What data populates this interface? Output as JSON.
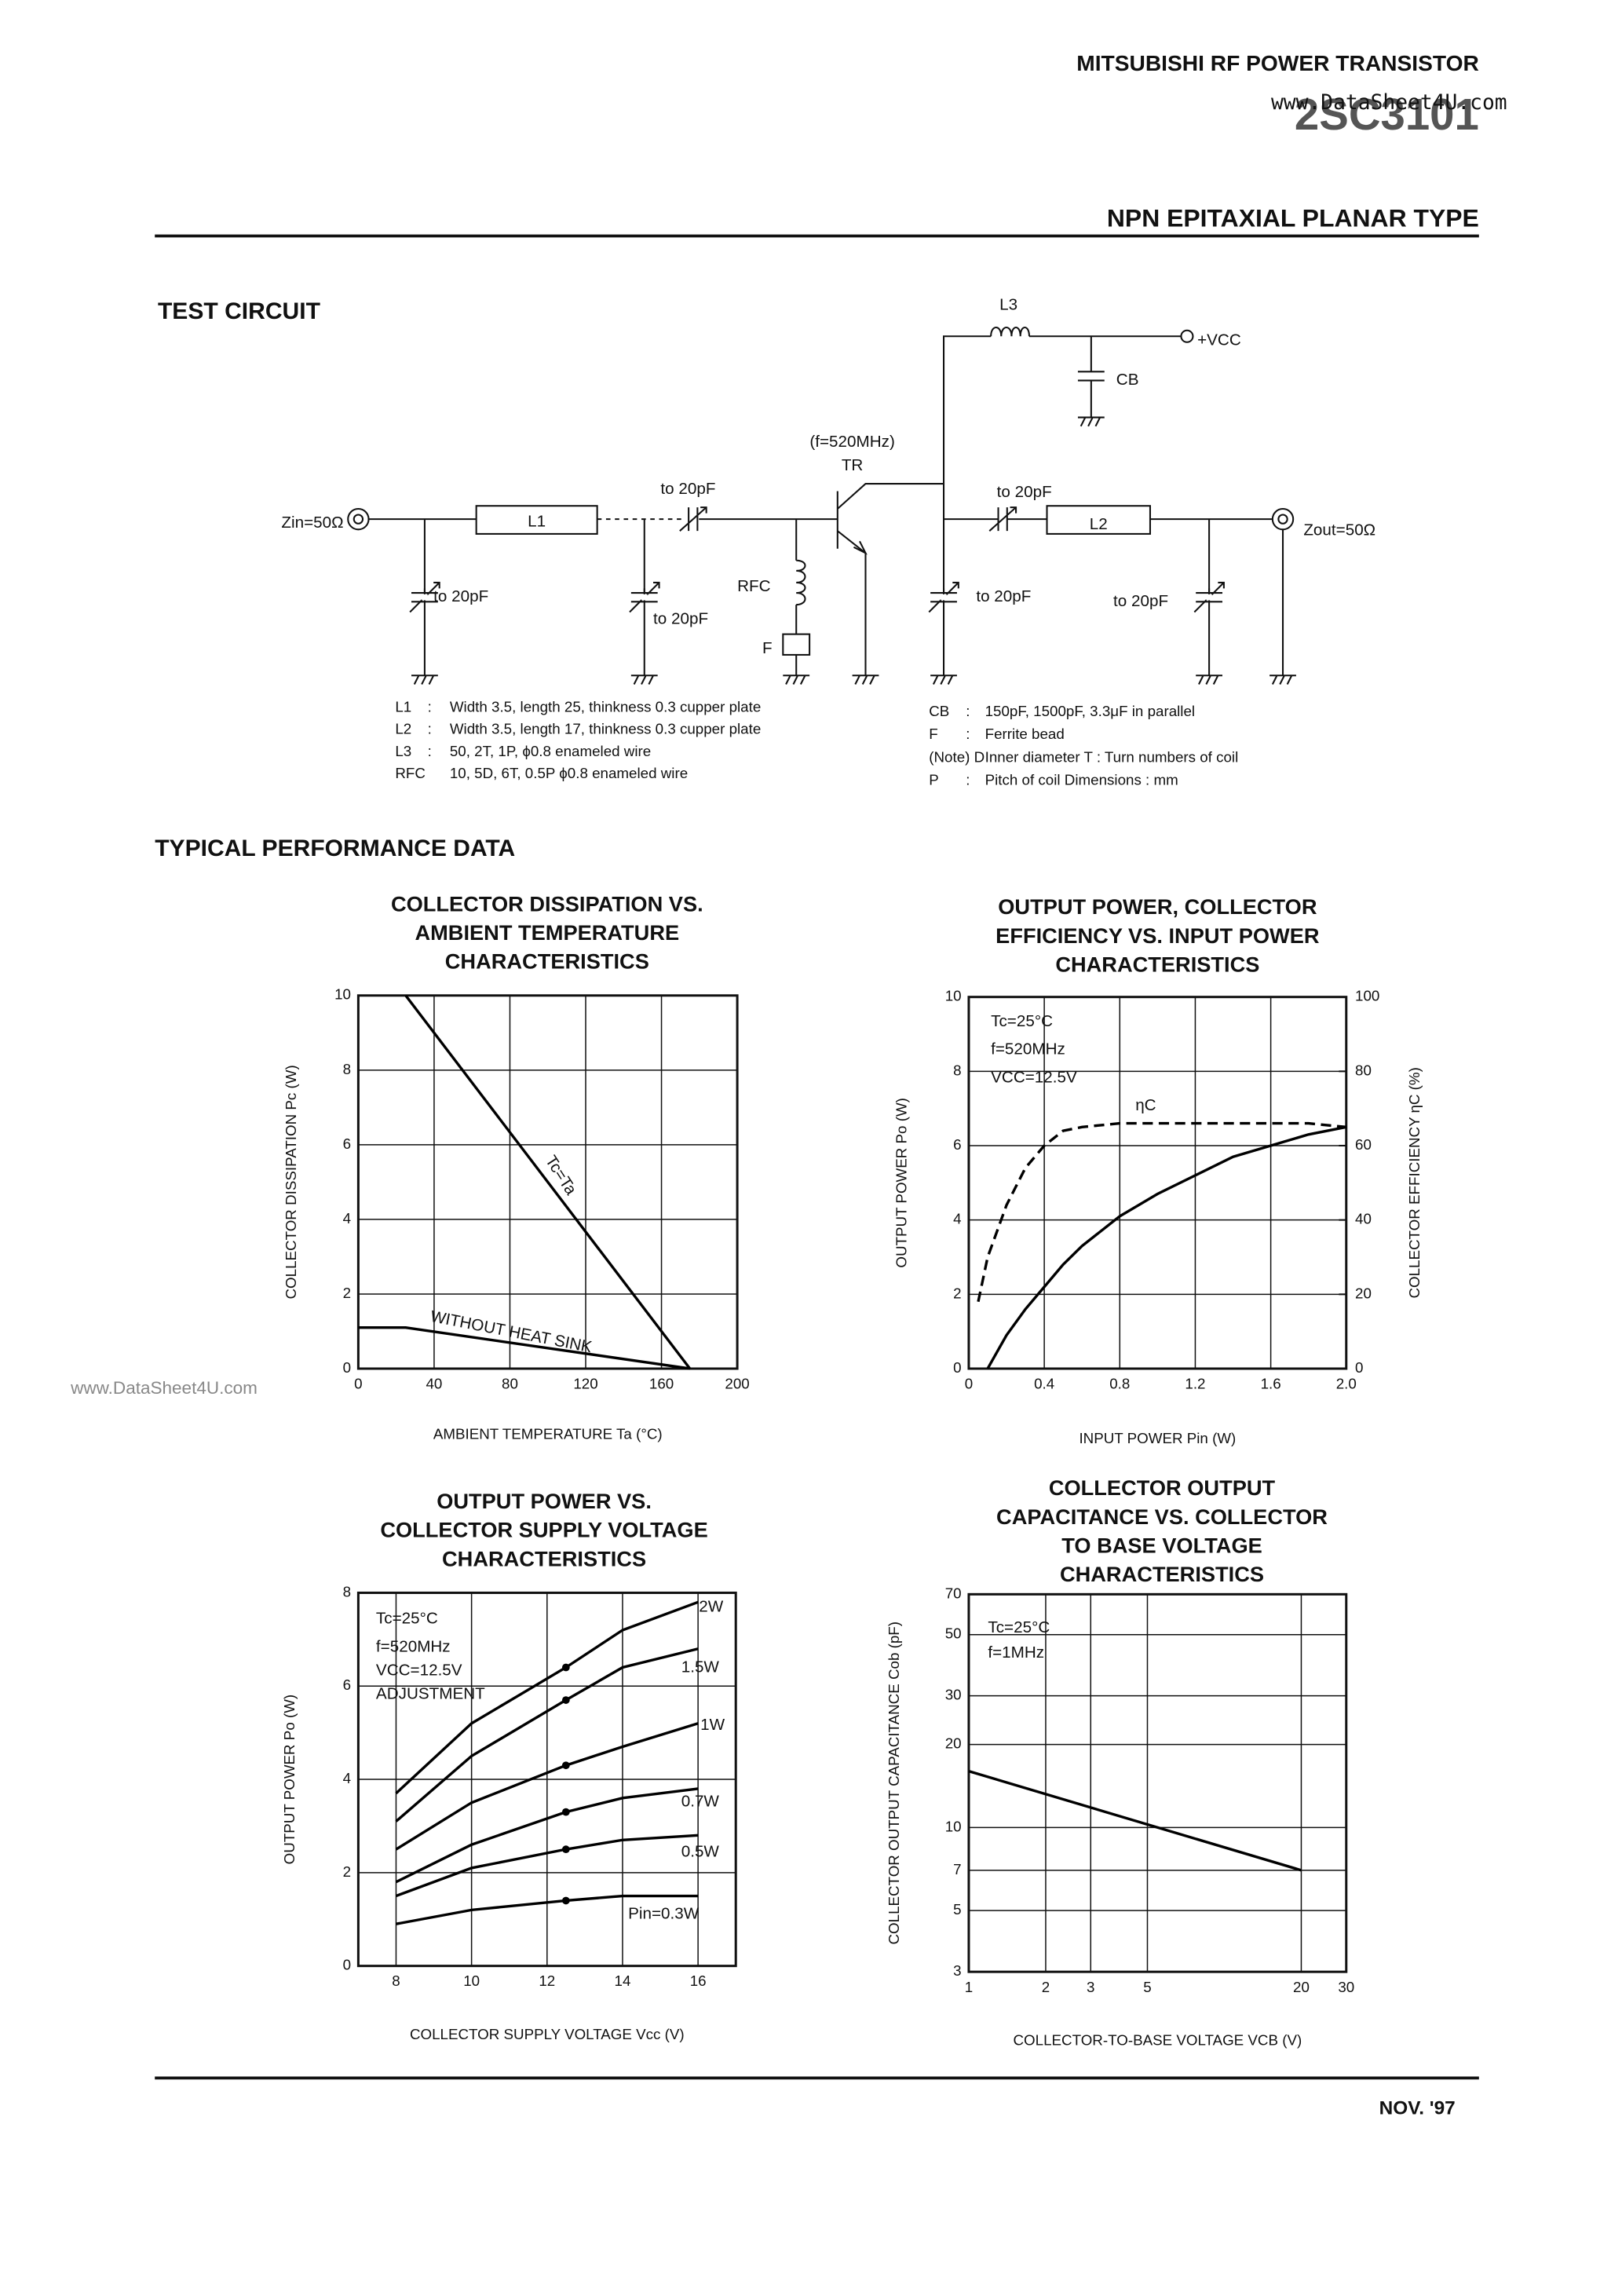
{
  "header": {
    "company": "MITSUBISHI RF POWER TRANSISTOR",
    "part": "2SC3101",
    "watermark": "www.DataSheet4U.com",
    "type": "NPN EPITAXIAL PLANAR TYPE"
  },
  "test_circuit": {
    "title": "TEST CIRCUIT",
    "labels": [
      "Zin=50Ω",
      "L1",
      "to 20pF",
      "to 20pF",
      "to 20pF",
      "(f=520MHz)",
      "TR",
      "RFC",
      "F",
      "to 20pF",
      "to 20pF",
      "L2",
      "to 20pF",
      "Zout=50Ω",
      "L3",
      "+VCC",
      "CB"
    ],
    "notes": [
      [
        "L1",
        ":",
        "Width 3.5, length 25, thinkness 0.3 cupper plate"
      ],
      [
        "L2",
        ":",
        "Width 3.5, length 17, thinkness 0.3 cupper plate"
      ],
      [
        "L3",
        ":",
        "50, 2T, 1P, ϕ0.8 enameled wire"
      ],
      [
        "RFC",
        "",
        "10, 5D, 6T, 0.5P ϕ0.8 enameled wire"
      ],
      [
        "CB",
        ":",
        "150pF, 1500pF, 3.3μF in parallel"
      ],
      [
        "F",
        ":",
        "Ferrite bead"
      ],
      [
        "(Note) D",
        ":",
        "Inner diameter   T : Turn numbers of coil"
      ],
      [
        "P",
        ":",
        "Pitch of coil   Dimensions : mm"
      ]
    ]
  },
  "performance_title": "TYPICAL PERFORMANCE DATA",
  "chart_data": [
    {
      "type": "line",
      "title_lines": [
        "COLLECTOR DISSIPATION VS.",
        "AMBIENT TEMPERATURE",
        "CHARACTERISTICS"
      ],
      "x_label": "AMBIENT TEMPERATURE Ta (°C)",
      "y_label": "COLLECTOR DISSIPATION Pc (W)",
      "x": [
        0,
        25,
        175
      ],
      "series": [
        {
          "name": "Tc=Ta",
          "color": "#000000",
          "values": [
            null,
            10,
            0
          ]
        },
        {
          "name": "WITHOUT HEAT SINK",
          "color": "#000000",
          "values": [
            1.1,
            1.1,
            0
          ]
        }
      ],
      "xlim": [
        0,
        200
      ],
      "xticks": [
        0,
        40,
        80,
        120,
        160,
        200
      ],
      "ylim": [
        0,
        10
      ],
      "yticks": [
        0,
        2,
        4,
        6,
        8,
        10
      ],
      "grid": true
    },
    {
      "type": "line",
      "title_lines": [
        "OUTPUT POWER, COLLECTOR",
        "EFFICIENCY VS. INPUT POWER",
        "CHARACTERISTICS"
      ],
      "x_label": "INPUT POWER Pin (W)",
      "y_label": "OUTPUT POWER Po (W)",
      "y2_label": "COLLECTOR EFFICIENCY ηC (%)",
      "annotations": [
        "Tc=25°C",
        "f=520MHz",
        "VCC=12.5V"
      ],
      "x": [
        0.05,
        0.1,
        0.2,
        0.3,
        0.4,
        0.5,
        0.6,
        0.8,
        1.0,
        1.2,
        1.4,
        1.6,
        1.8,
        2.0
      ],
      "series": [
        {
          "color": "#000000",
          "values": [
            null,
            0,
            0.9,
            1.6,
            2.2,
            2.8,
            3.3,
            4.1,
            4.7,
            5.2,
            5.7,
            6.0,
            6.3,
            6.5
          ]
        },
        {
          "name": "ηC",
          "color": "#000000",
          "style": "dashed",
          "axis": "y2",
          "values": [
            18,
            30,
            44,
            54,
            60,
            64,
            65,
            66,
            66,
            66,
            66,
            66,
            66,
            65
          ]
        }
      ],
      "xlim": [
        0,
        2
      ],
      "xticks": [
        0,
        0.4,
        0.8,
        1.2,
        1.6,
        {
          "value": 2,
          "label": "2.0"
        }
      ],
      "ylim": [
        0,
        10
      ],
      "yticks": [
        0,
        2,
        4,
        6,
        8,
        10
      ],
      "y2lim": [
        0,
        100
      ],
      "y2ticks": [
        0,
        20,
        40,
        60,
        80,
        100
      ],
      "grid": true
    },
    {
      "type": "line",
      "title_lines": [
        "OUTPUT POWER VS.",
        "COLLECTOR SUPPLY VOLTAGE",
        "CHARACTERISTICS"
      ],
      "x_label": "COLLECTOR SUPPLY VOLTAGE Vcc (V)",
      "y_label": "OUTPUT POWER Po (W)",
      "annotations": [
        "Tc=25°C",
        "f=520MHz",
        "VCC=12.5V",
        "ADJUSTMENT"
      ],
      "x": [
        8,
        10,
        12.5,
        14,
        16
      ],
      "markers_x": 12.5,
      "series": [
        {
          "name": "2W",
          "color": "#000000",
          "values": [
            3.7,
            5.2,
            6.4,
            7.2,
            7.8
          ]
        },
        {
          "name": "1.5W",
          "color": "#000000",
          "values": [
            3.1,
            4.5,
            5.7,
            6.4,
            6.8
          ]
        },
        {
          "name": "1W",
          "color": "#000000",
          "values": [
            2.5,
            3.5,
            4.3,
            4.7,
            5.2
          ]
        },
        {
          "name": "0.7W",
          "color": "#000000",
          "values": [
            1.8,
            2.6,
            3.3,
            3.6,
            3.8
          ]
        },
        {
          "name": "0.5W",
          "color": "#000000",
          "values": [
            1.5,
            2.1,
            2.5,
            2.7,
            2.8
          ]
        },
        {
          "name": "Pin=0.3W",
          "color": "#000000",
          "values": [
            0.9,
            1.2,
            1.4,
            1.5,
            1.5
          ]
        }
      ],
      "xlim": [
        7,
        17
      ],
      "xticks": [
        8,
        10,
        12,
        14,
        16
      ],
      "ylim": [
        0,
        8
      ],
      "yticks": [
        0,
        2,
        4,
        6,
        8
      ],
      "grid": true
    },
    {
      "type": "line",
      "title_lines": [
        "COLLECTOR OUTPUT",
        "CAPACITANCE VS. COLLECTOR",
        "TO BASE VOLTAGE",
        "CHARACTERISTICS"
      ],
      "x_label": "COLLECTOR-TO-BASE VOLTAGE VCB (V)",
      "y_label": "COLLECTOR OUTPUT CAPACITANCE Cob (pF)",
      "annotations": [
        "Tc=25°C",
        "f=1MHz"
      ],
      "x": [
        1,
        20
      ],
      "values": [
        16,
        7
      ],
      "color": "#000000",
      "xlim": [
        1,
        30
      ],
      "xticks": [
        1,
        2,
        3,
        5,
        20,
        30
      ],
      "xlog": true,
      "ylim": [
        3,
        70
      ],
      "yticks": [
        3,
        5,
        7,
        10,
        20,
        30,
        50,
        70
      ],
      "ylog": true,
      "grid": true
    }
  ],
  "side_watermark": "www.DataSheet4U.com",
  "footer": {
    "date": "NOV. '97"
  }
}
